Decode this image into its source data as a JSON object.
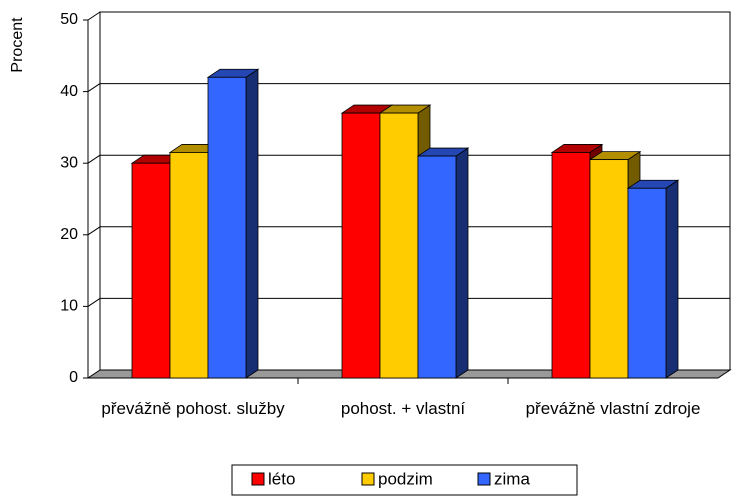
{
  "chart_data": {
    "type": "bar3d",
    "y_label": "Procent",
    "categories": [
      "převážně pohost. služby",
      "pohost. + vlastní",
      "převážně vlastní zdroje"
    ],
    "series": [
      {
        "name": "léto",
        "color": "#ff0000",
        "values": [
          30,
          37,
          31.5
        ]
      },
      {
        "name": "podzim",
        "color": "#ffcc00",
        "values": [
          31.5,
          37,
          30.5
        ]
      },
      {
        "name": "zima",
        "color": "#3366ff",
        "values": [
          42,
          31,
          26.5
        ]
      }
    ],
    "ylim": [
      0,
      50
    ],
    "yticks": [
      0,
      10,
      20,
      30,
      40,
      50
    ],
    "grid": true,
    "legend": "bottom"
  }
}
